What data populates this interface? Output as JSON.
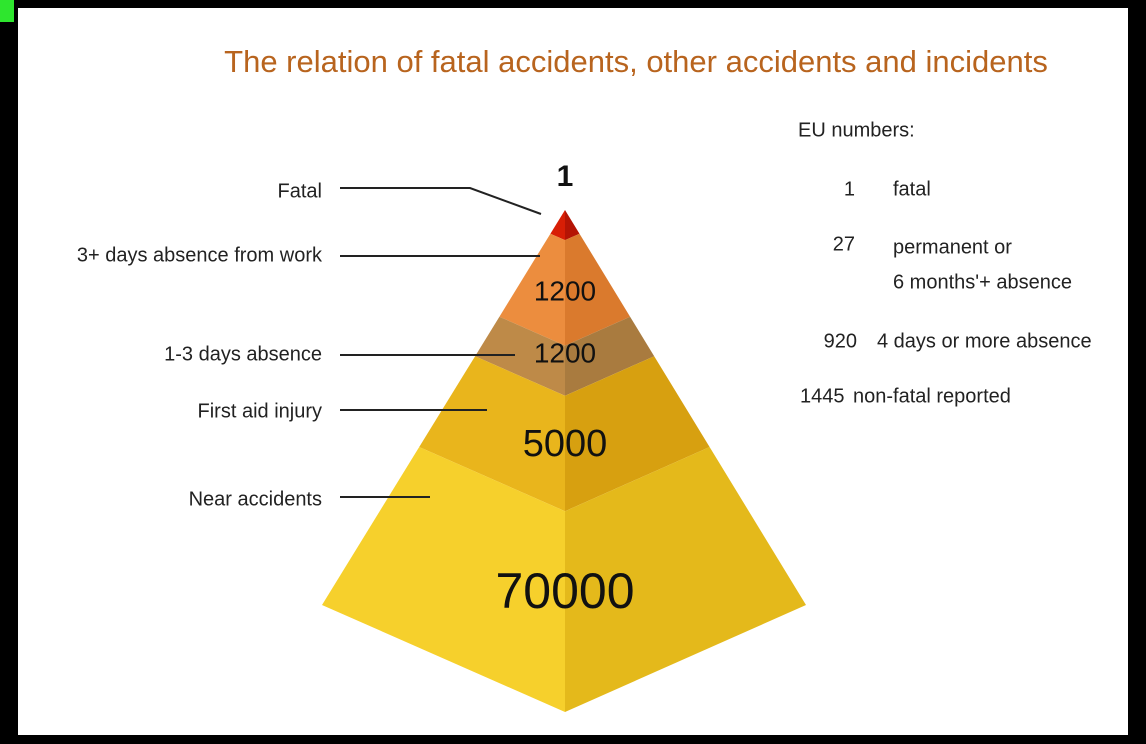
{
  "title": "The relation of fatal accidents, other accidents and incidents",
  "layers": [
    {
      "label": "Fatal",
      "number": "1"
    },
    {
      "label": "3+ days absence from work",
      "number": "1200"
    },
    {
      "label": "1-3 days absence",
      "number": "1200"
    },
    {
      "label": "First aid injury",
      "number": "5000"
    },
    {
      "label": "Near accidents",
      "number": "70000"
    }
  ],
  "eu_numbers": {
    "heading": "EU numbers:",
    "items": [
      {
        "number": "1",
        "text": [
          "fatal"
        ]
      },
      {
        "number": "27",
        "text": [
          "permanent or",
          "6 months'+ absence"
        ]
      },
      {
        "number": "920",
        "text": [
          "4 days or more absence"
        ]
      },
      {
        "number": "1445",
        "text": [
          "non-fatal reported"
        ]
      }
    ]
  }
}
